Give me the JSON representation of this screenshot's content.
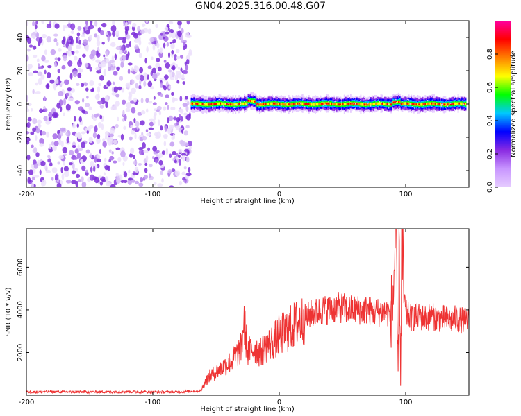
{
  "title": "GN04.2025.316.00.48.G07",
  "colors": {
    "snr_line": "#ee3333",
    "colorbar": [
      "#e6ccff",
      "#c896ff",
      "#8a2be2",
      "#0000ff",
      "#00c8ff",
      "#00ff00",
      "#ffff00",
      "#ff8000",
      "#ff0000",
      "#ff00a0"
    ],
    "frame": "#000000"
  },
  "chart_data": [
    {
      "type": "heatmap",
      "name": "spectrogram",
      "xlabel": "Height of straight line (km)",
      "ylabel": "Frequency (Hz)",
      "xlim": [
        -200,
        150
      ],
      "ylim": [
        -50,
        50
      ],
      "xticks": [
        -200,
        -100,
        0,
        100
      ],
      "xtick_labels": [
        "-200",
        "-100",
        "0",
        "100"
      ],
      "yticks": [
        -40,
        -20,
        0,
        20,
        40
      ],
      "ytick_labels": [
        "-40",
        "-20",
        "0",
        "20",
        "40"
      ],
      "noise_region_x": [
        -200,
        -70
      ],
      "signal_region_x": [
        -70,
        148
      ],
      "signal_center_hz": 0,
      "signal_width_hz": 3,
      "colorbar": {
        "label": "Normalized spectral amplitude",
        "range": [
          0,
          1
        ],
        "ticks": [
          0.0,
          0.2,
          0.4,
          0.6,
          0.8
        ],
        "tick_labels": [
          "0.0",
          "0.2",
          "0.4",
          "0.6",
          "0.8"
        ]
      }
    },
    {
      "type": "line",
      "name": "snr",
      "xlabel": "Height of straight line (km)",
      "ylabel": "SNR (10 * v/v)",
      "xlim": [
        -200,
        150
      ],
      "ylim": [
        0,
        7800
      ],
      "xticks": [
        -200,
        -100,
        0,
        100
      ],
      "xtick_labels": [
        "-200",
        "-100",
        "0",
        "100"
      ],
      "yticks": [
        2000,
        4000,
        6000
      ],
      "ytick_labels": [
        "2000",
        "4000",
        "6000"
      ],
      "series": [
        {
          "name": "SNR",
          "x": [
            -200,
            -180,
            -160,
            -140,
            -120,
            -100,
            -80,
            -62,
            -58,
            -55,
            -50,
            -45,
            -40,
            -35,
            -30,
            -28,
            -25,
            -20,
            -15,
            -10,
            -5,
            0,
            5,
            10,
            15,
            20,
            25,
            30,
            35,
            40,
            45,
            50,
            55,
            60,
            65,
            70,
            75,
            80,
            85,
            88,
            90,
            92,
            94,
            95,
            96,
            97,
            98,
            100,
            105,
            110,
            115,
            120,
            125,
            130,
            135,
            140,
            145,
            150
          ],
          "values": [
            150,
            160,
            150,
            150,
            160,
            150,
            150,
            200,
            700,
            900,
            1100,
            1300,
            1500,
            1800,
            2200,
            3500,
            2000,
            2200,
            2000,
            2300,
            2500,
            2800,
            3000,
            3200,
            3400,
            3600,
            3800,
            3900,
            4000,
            4000,
            4100,
            4100,
            4000,
            4000,
            4000,
            4000,
            3900,
            3900,
            3900,
            3800,
            4500,
            7600,
            1000,
            7000,
            600,
            7800,
            5200,
            3800,
            3600,
            3700,
            3600,
            3700,
            3600,
            3600,
            3500,
            3600,
            3500,
            3500
          ]
        }
      ]
    }
  ]
}
